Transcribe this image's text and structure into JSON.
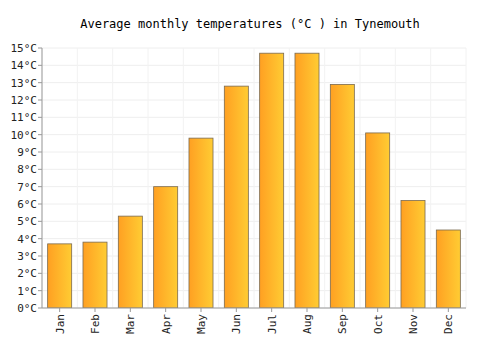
{
  "chart_data": {
    "type": "bar",
    "title": "Average monthly temperatures (°C ) in Tynemouth",
    "categories": [
      "Jan",
      "Feb",
      "Mar",
      "Apr",
      "May",
      "Jun",
      "Jul",
      "Aug",
      "Sep",
      "Oct",
      "Nov",
      "Dec"
    ],
    "values": [
      3.7,
      3.8,
      5.3,
      7.0,
      9.8,
      12.8,
      14.7,
      14.7,
      12.9,
      10.1,
      6.2,
      4.5
    ],
    "color": "#ffa022",
    "ylim": [
      0,
      15
    ],
    "yticks": [
      {
        "value": 0,
        "label": "0°C"
      },
      {
        "value": 1,
        "label": "1°C"
      },
      {
        "value": 2,
        "label": "2°C"
      },
      {
        "value": 3,
        "label": "3°C"
      },
      {
        "value": 4,
        "label": "4°C"
      },
      {
        "value": 5,
        "label": "5°C"
      },
      {
        "value": 6,
        "label": "6°C"
      },
      {
        "value": 7,
        "label": "7°C"
      },
      {
        "value": 8,
        "label": "8°C"
      },
      {
        "value": 9,
        "label": "9°C"
      },
      {
        "value": 10,
        "label": "10°C"
      },
      {
        "value": 11,
        "label": "11°C"
      },
      {
        "value": 12,
        "label": "12°C"
      },
      {
        "value": 13,
        "label": "13°C"
      },
      {
        "value": 14,
        "label": "14°C"
      },
      {
        "value": 15,
        "label": "15°C"
      }
    ],
    "grid": true
  }
}
